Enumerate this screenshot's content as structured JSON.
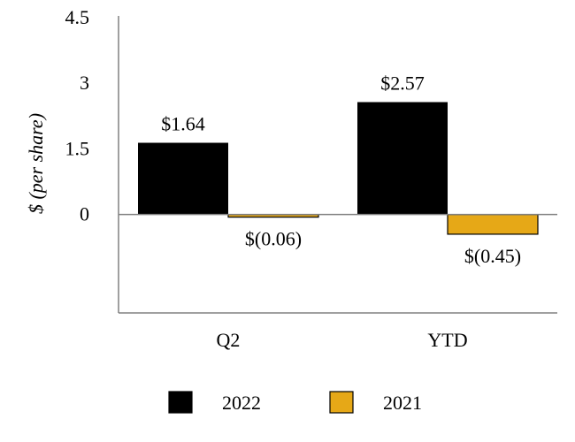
{
  "chart_data": {
    "type": "bar",
    "categories": [
      "Q2",
      "YTD"
    ],
    "series": [
      {
        "name": "2022",
        "color": "#000000",
        "values": [
          1.64,
          2.57
        ],
        "labels": [
          "$1.64",
          "$2.57"
        ]
      },
      {
        "name": "2021",
        "color": "#E6A817",
        "values": [
          -0.06,
          -0.45
        ],
        "labels": [
          "$(0.06)",
          "$(0.45)"
        ]
      }
    ],
    "ylabel": "$ (per share)",
    "ylim": [
      -2.25,
      4.5
    ],
    "yticks": [
      {
        "value": 4.5,
        "label": "4.5"
      },
      {
        "value": 3,
        "label": "3"
      },
      {
        "value": 1.5,
        "label": "1.5"
      },
      {
        "value": 0,
        "label": "0"
      }
    ],
    "grid": false,
    "legend_position": "bottom"
  }
}
